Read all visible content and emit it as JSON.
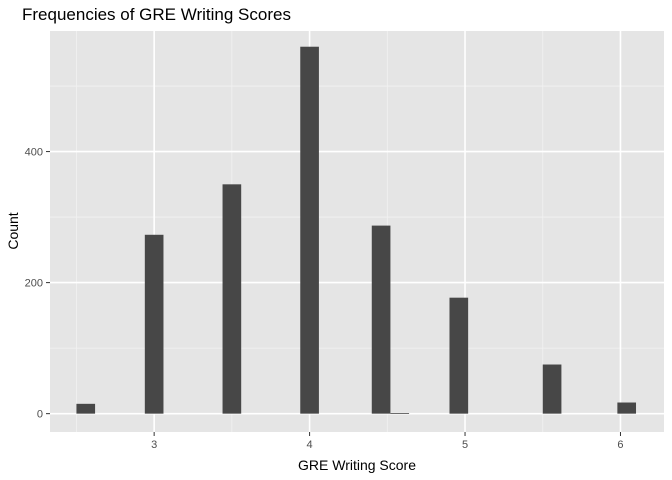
{
  "chart_data": {
    "type": "bar",
    "title": "Frequencies of GRE Writing Scores",
    "xlabel": "GRE Writing Score",
    "ylabel": "Count",
    "x_ticks": [
      3,
      4,
      5,
      6
    ],
    "y_ticks": [
      0,
      200,
      400
    ],
    "xlim": [
      2.33,
      6.28
    ],
    "ylim": [
      -28,
      584
    ],
    "bin_width": 0.12,
    "bars": [
      {
        "x": 2.56,
        "count": 15
      },
      {
        "x": 3.0,
        "count": 273
      },
      {
        "x": 3.5,
        "count": 350
      },
      {
        "x": 4.0,
        "count": 560
      },
      {
        "x": 4.46,
        "count": 287
      },
      {
        "x": 4.58,
        "count": 1
      },
      {
        "x": 4.96,
        "count": 177
      },
      {
        "x": 5.56,
        "count": 75
      },
      {
        "x": 6.04,
        "count": 17
      }
    ],
    "grid": true,
    "colors": {
      "panel": "#e5e5e5",
      "grid_major": "#ffffff",
      "grid_minor": "#f2f2f2",
      "bar": "#474747"
    }
  }
}
